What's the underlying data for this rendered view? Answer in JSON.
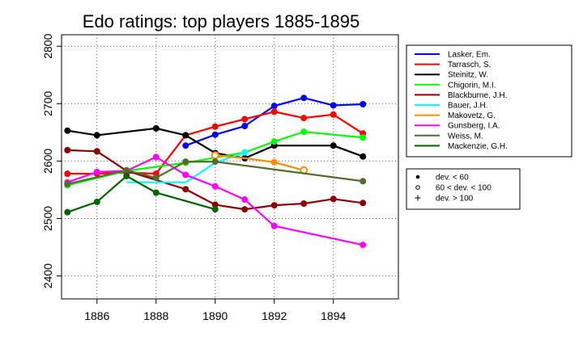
{
  "chart_data": {
    "type": "line",
    "title": "Edo ratings: top players 1885-1895",
    "xlabel": "",
    "ylabel": "",
    "xlim": [
      1884.8,
      1896.2
    ],
    "ylim": [
      2360,
      2820
    ],
    "x_ticks": [
      1886,
      1888,
      1890,
      1892,
      1894
    ],
    "y_ticks": [
      2400,
      2500,
      2600,
      2700,
      2800
    ],
    "grid": true,
    "legend_placement": "right",
    "series": [
      {
        "name": "Lasker, Em.",
        "color": "#0000ff",
        "points": [
          [
            1889,
            2627,
            "dot"
          ],
          [
            1890,
            2646,
            "dot"
          ],
          [
            1891,
            2661,
            "dot"
          ],
          [
            1892,
            2696,
            "dot"
          ],
          [
            1893,
            2710,
            "dot"
          ],
          [
            1894,
            2697,
            "dot"
          ],
          [
            1895,
            2699,
            "dot"
          ]
        ]
      },
      {
        "name": "Tarrasch, S.",
        "color": "#ff0000",
        "points": [
          [
            1885,
            2578,
            "dot"
          ],
          [
            1886,
            2578,
            "dot"
          ],
          [
            1887,
            2580,
            "dot"
          ],
          [
            1888,
            2578,
            "dot"
          ],
          [
            1889,
            2645,
            "dot"
          ],
          [
            1890,
            2660,
            "dot"
          ],
          [
            1891,
            2673,
            "dot"
          ],
          [
            1892,
            2686,
            "dot"
          ],
          [
            1893,
            2675,
            "dot"
          ],
          [
            1894,
            2681,
            "dot"
          ],
          [
            1895,
            2648,
            "dot"
          ]
        ]
      },
      {
        "name": "Steinitz, W.",
        "color": "#000000",
        "points": [
          [
            1885,
            2653,
            "dot"
          ],
          [
            1886,
            2645,
            "dot"
          ],
          [
            1888,
            2657,
            "dot"
          ],
          [
            1889,
            2645,
            "dot"
          ],
          [
            1890,
            2614,
            "dot"
          ],
          [
            1891,
            2605,
            "dot"
          ],
          [
            1892,
            2627,
            "dot"
          ],
          [
            1894,
            2627,
            "dot"
          ],
          [
            1895,
            2608,
            "dot"
          ]
        ]
      },
      {
        "name": "Chigorin, M.I.",
        "color": "#00ff00",
        "points": [
          [
            1885,
            2558,
            "dot"
          ],
          [
            1887,
            2583,
            "dot"
          ],
          [
            1889,
            2597,
            "dot"
          ],
          [
            1891,
            2615,
            "dot"
          ],
          [
            1892,
            2634,
            "dot"
          ],
          [
            1893,
            2651,
            "dot"
          ],
          [
            1895,
            2641,
            "dot"
          ]
        ]
      },
      {
        "name": "Blackburne, J.H.",
        "color": "#8b0000",
        "points": [
          [
            1885,
            2619,
            "dot"
          ],
          [
            1886,
            2617,
            "dot"
          ],
          [
            1887,
            2583,
            "dot"
          ],
          [
            1889,
            2551,
            "dot"
          ],
          [
            1890,
            2524,
            "dot"
          ],
          [
            1891,
            2516,
            "dot"
          ],
          [
            1892,
            2523,
            "dot"
          ],
          [
            1893,
            2526,
            "dot"
          ],
          [
            1894,
            2534,
            "dot"
          ],
          [
            1895,
            2527,
            "dot"
          ]
        ]
      },
      {
        "name": "Bauer, J.H.",
        "color": "#00ffff",
        "points": [
          [
            1887,
            2563,
            "none"
          ],
          [
            1889,
            2563,
            "none"
          ],
          [
            1890,
            2597,
            "none"
          ],
          [
            1891,
            2615,
            "dot"
          ]
        ]
      },
      {
        "name": "Makovetz, G.",
        "color": "#ff8c00",
        "points": [
          [
            1890,
            2610,
            "ring"
          ],
          [
            1891,
            2605,
            "none"
          ],
          [
            1892,
            2598,
            "dot"
          ],
          [
            1893,
            2584,
            "ring"
          ]
        ]
      },
      {
        "name": "Gunsberg, I.A.",
        "color": "#ff00ff",
        "points": [
          [
            1885,
            2563,
            "dot"
          ],
          [
            1886,
            2581,
            "dot"
          ],
          [
            1887,
            2583,
            "dot"
          ],
          [
            1888,
            2607,
            "dot"
          ],
          [
            1889,
            2576,
            "dot"
          ],
          [
            1890,
            2556,
            "dot"
          ],
          [
            1891,
            2533,
            "dot"
          ],
          [
            1892,
            2487,
            "dot"
          ],
          [
            1895,
            2454,
            "dot"
          ]
        ]
      },
      {
        "name": "Weiss, M.",
        "color": "#556b2f",
        "points": [
          [
            1885,
            2560,
            "dot"
          ],
          [
            1887,
            2584,
            "dot"
          ],
          [
            1888,
            2571,
            "dot"
          ],
          [
            1889,
            2599,
            "dot"
          ],
          [
            1890,
            2599,
            "dot"
          ],
          [
            1895,
            2565,
            "dot"
          ]
        ]
      },
      {
        "name": "Mackenzie, G.H.",
        "color": "#006400",
        "points": [
          [
            1885,
            2511,
            "dot"
          ],
          [
            1886,
            2529,
            "dot"
          ],
          [
            1887,
            2574,
            "dot"
          ],
          [
            1888,
            2545,
            "dot"
          ],
          [
            1890,
            2516,
            "dot"
          ]
        ]
      }
    ],
    "marker_legend": [
      {
        "symbol": "dot",
        "label": "dev. < 60"
      },
      {
        "symbol": "ring",
        "label": "60 < dev. < 100"
      },
      {
        "symbol": "plus",
        "label": "dev. > 100"
      }
    ]
  }
}
